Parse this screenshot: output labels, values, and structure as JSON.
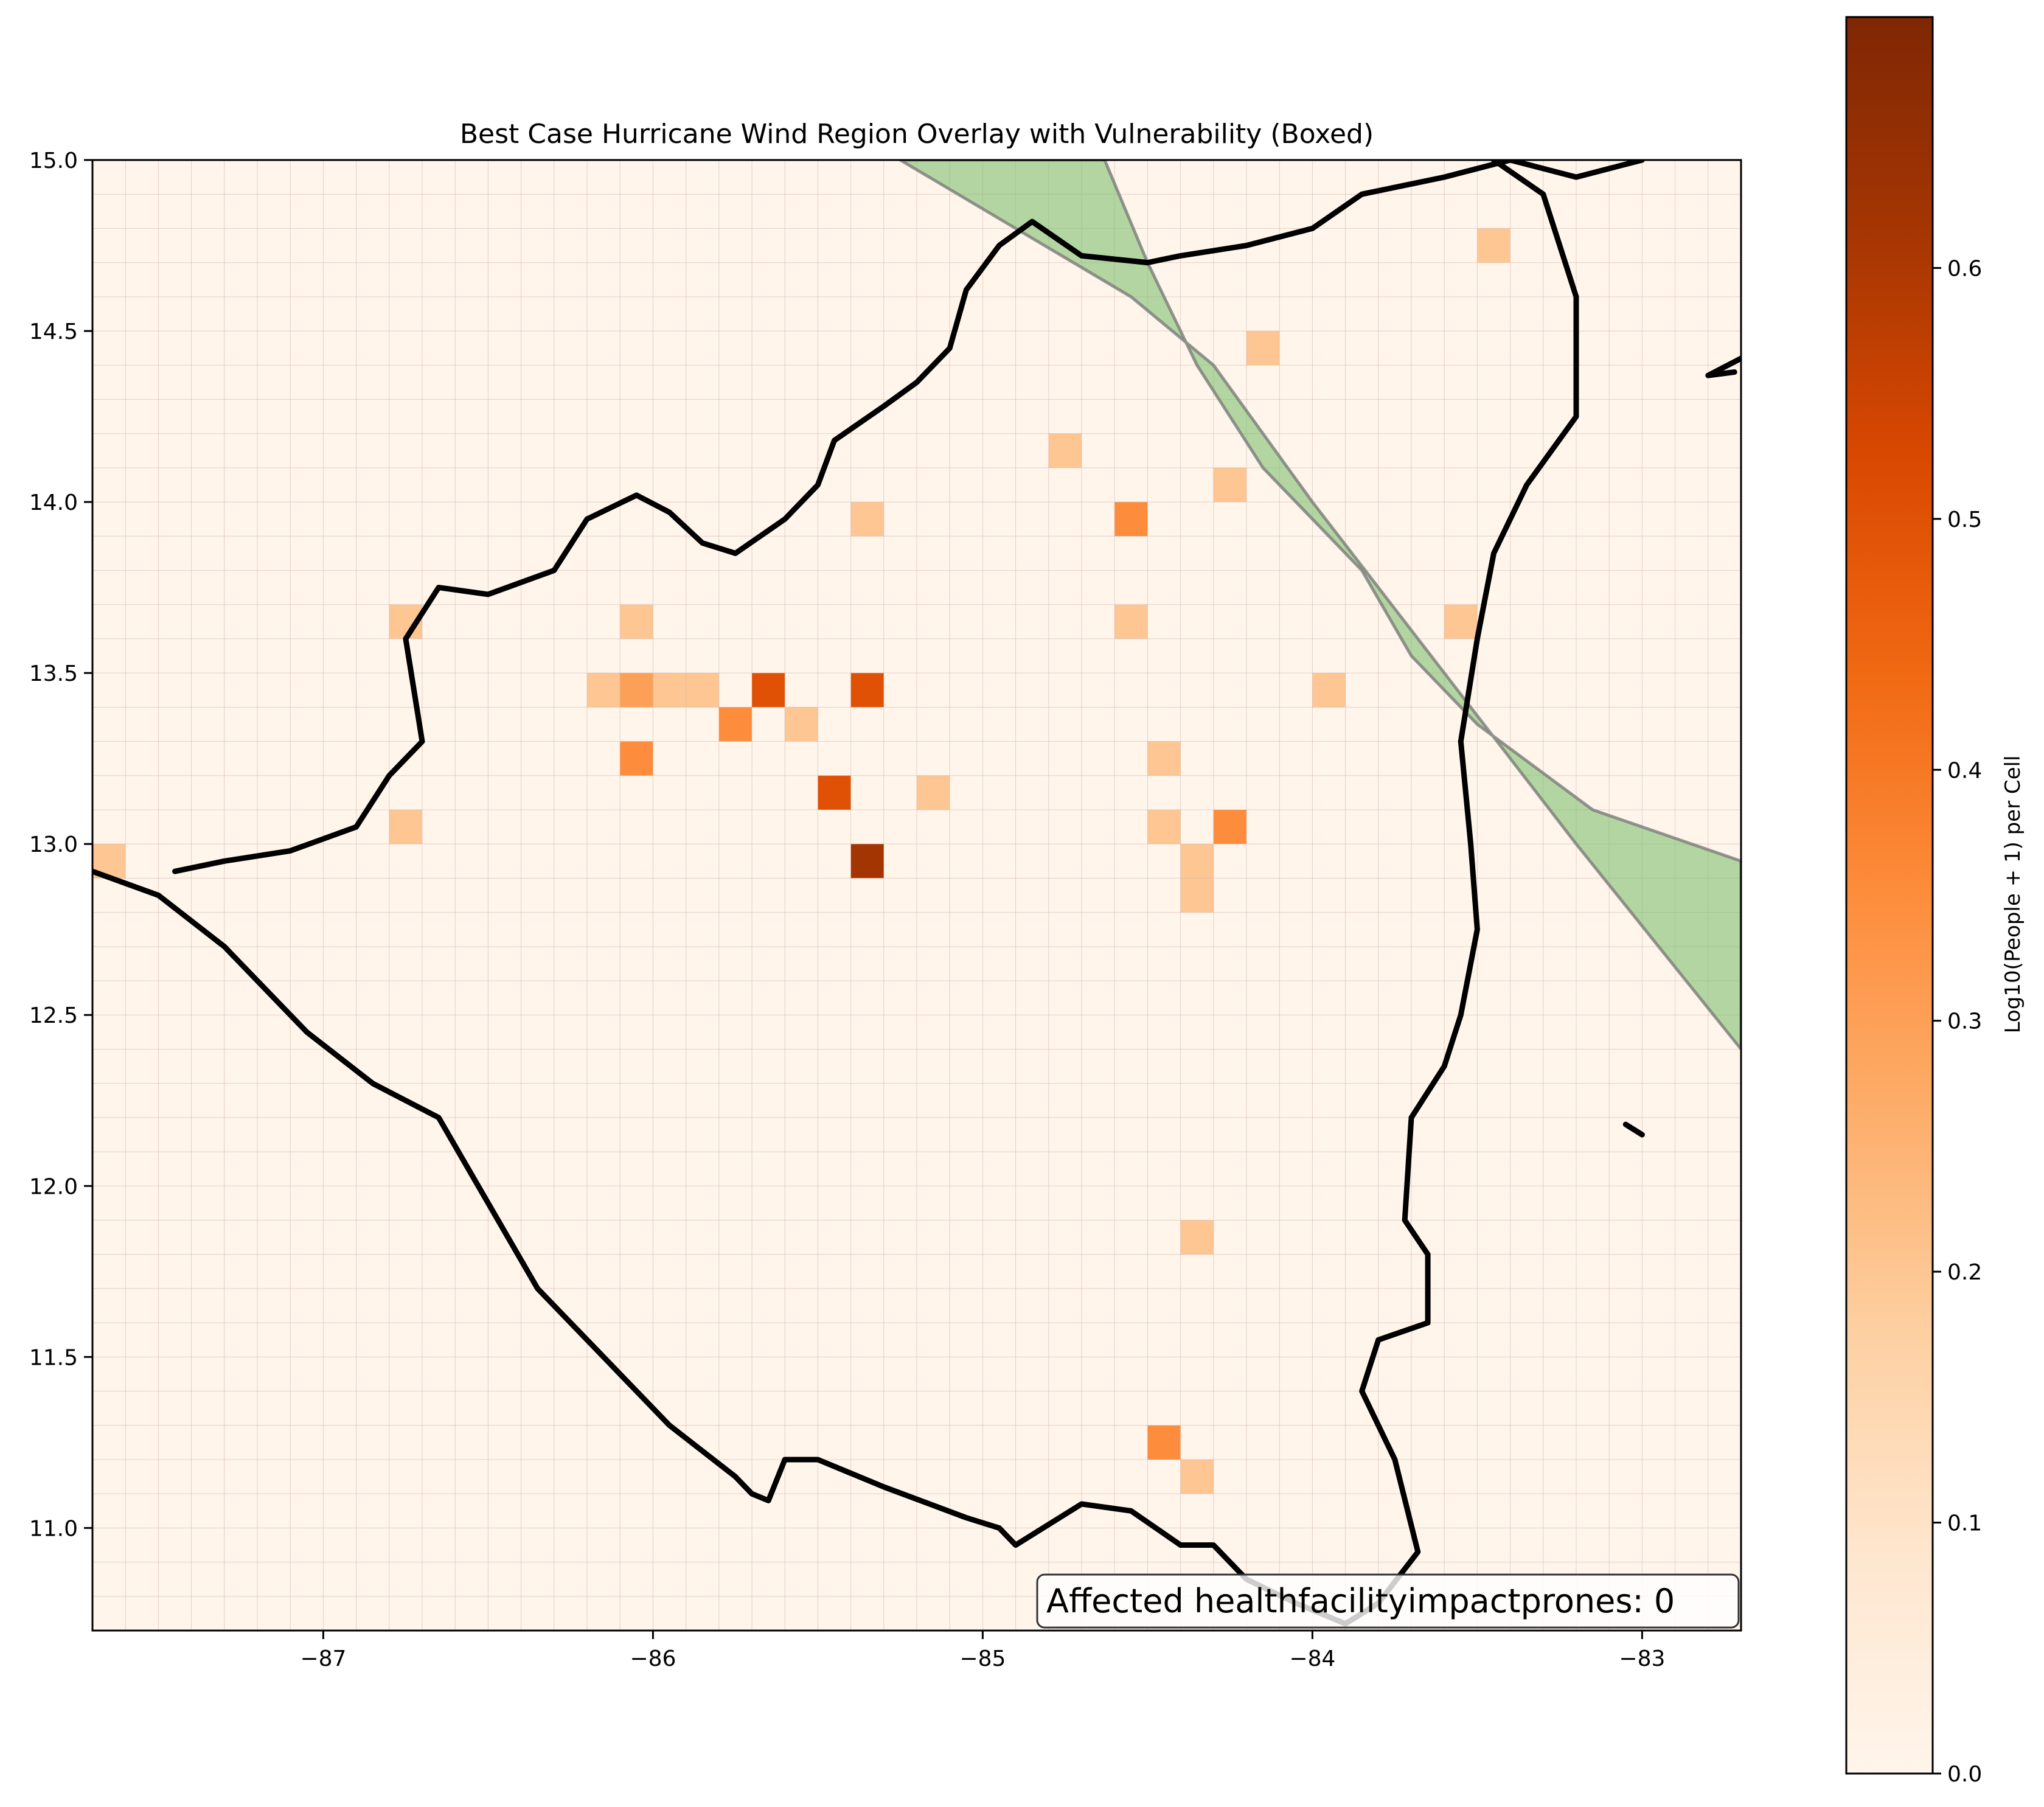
{
  "title": "Best Case Hurricane Wind Region Overlay with Vulnerability (Boxed)",
  "annotation": "Affected healthfacilityimpactprones: 0",
  "colorbar": {
    "label": "Log10(People + 1) per Cell",
    "ticks": [
      "0.0",
      "0.1",
      "0.2",
      "0.3",
      "0.4",
      "0.5",
      "0.6"
    ],
    "range": [
      0,
      0.7
    ],
    "colormap": [
      "#fff5eb",
      "#fee6ce",
      "#fdd0a2",
      "#fdae6b",
      "#fd8d3c",
      "#f16913",
      "#d94801",
      "#a63603",
      "#7f2704"
    ]
  },
  "axes": {
    "x_ticks": [
      "−87",
      "−86",
      "−85",
      "−84",
      "−83"
    ],
    "y_ticks": [
      "11.0",
      "11.5",
      "12.0",
      "12.5",
      "13.0",
      "13.5",
      "14.0",
      "14.5",
      "15.0"
    ]
  },
  "colors": {
    "background": "#fff5eb",
    "grid": "#c9a9a6",
    "wind_fill": "#7fbf6f",
    "wind_edge": "#7a7a7a",
    "coast": "#000000"
  },
  "chart_data": {
    "type": "heatmap",
    "title": "Best Case Hurricane Wind Region Overlay with Vulnerability (Boxed)",
    "xlim": [
      -87.7,
      -82.7
    ],
    "ylim": [
      10.7,
      15.0
    ],
    "cell_size_deg": 0.1,
    "value_label": "Log10(People + 1) per Cell",
    "cells": [
      {
        "lon": -83.45,
        "lat": 14.75,
        "v": 0.2
      },
      {
        "lon": -84.15,
        "lat": 14.45,
        "v": 0.2
      },
      {
        "lon": -84.75,
        "lat": 14.15,
        "v": 0.2
      },
      {
        "lon": -84.25,
        "lat": 14.05,
        "v": 0.2
      },
      {
        "lon": -85.35,
        "lat": 13.95,
        "v": 0.2
      },
      {
        "lon": -84.55,
        "lat": 13.95,
        "v": 0.35
      },
      {
        "lon": -86.75,
        "lat": 13.65,
        "v": 0.2
      },
      {
        "lon": -86.05,
        "lat": 13.65,
        "v": 0.2
      },
      {
        "lon": -84.55,
        "lat": 13.65,
        "v": 0.2
      },
      {
        "lon": -83.55,
        "lat": 13.65,
        "v": 0.2
      },
      {
        "lon": -86.15,
        "lat": 13.45,
        "v": 0.2
      },
      {
        "lon": -86.05,
        "lat": 13.45,
        "v": 0.3
      },
      {
        "lon": -85.95,
        "lat": 13.45,
        "v": 0.2
      },
      {
        "lon": -85.85,
        "lat": 13.45,
        "v": 0.2
      },
      {
        "lon": -85.65,
        "lat": 13.45,
        "v": 0.5
      },
      {
        "lon": -85.35,
        "lat": 13.45,
        "v": 0.5
      },
      {
        "lon": -83.95,
        "lat": 13.45,
        "v": 0.2
      },
      {
        "lon": -85.75,
        "lat": 13.35,
        "v": 0.35
      },
      {
        "lon": -85.55,
        "lat": 13.35,
        "v": 0.2
      },
      {
        "lon": -86.05,
        "lat": 13.25,
        "v": 0.35
      },
      {
        "lon": -84.45,
        "lat": 13.25,
        "v": 0.2
      },
      {
        "lon": -85.45,
        "lat": 13.15,
        "v": 0.5
      },
      {
        "lon": -85.15,
        "lat": 13.15,
        "v": 0.2
      },
      {
        "lon": -86.75,
        "lat": 13.05,
        "v": 0.2
      },
      {
        "lon": -84.45,
        "lat": 13.05,
        "v": 0.2
      },
      {
        "lon": -84.25,
        "lat": 13.05,
        "v": 0.35
      },
      {
        "lon": -87.65,
        "lat": 12.95,
        "v": 0.2
      },
      {
        "lon": -85.35,
        "lat": 12.95,
        "v": 0.62
      },
      {
        "lon": -84.35,
        "lat": 12.95,
        "v": 0.2
      },
      {
        "lon": -84.35,
        "lat": 12.85,
        "v": 0.2
      },
      {
        "lon": -84.35,
        "lat": 11.85,
        "v": 0.2
      },
      {
        "lon": -84.45,
        "lat": 11.25,
        "v": 0.35
      },
      {
        "lon": -84.35,
        "lat": 11.15,
        "v": 0.2
      }
    ],
    "wind_region": {
      "band_a": [
        [
          -85.25,
          15.0
        ],
        [
          -84.55,
          14.6
        ],
        [
          -84.3,
          14.4
        ],
        [
          -84.0,
          14.0
        ],
        [
          -83.6,
          13.5
        ],
        [
          -83.2,
          13.0
        ],
        [
          -82.7,
          12.4
        ],
        [
          -82.7,
          12.95
        ],
        [
          -83.15,
          13.1
        ],
        [
          -83.5,
          13.35
        ],
        [
          -83.7,
          13.55
        ],
        [
          -83.85,
          13.8
        ],
        [
          -84.15,
          14.1
        ],
        [
          -84.35,
          14.4
        ],
        [
          -84.5,
          14.7
        ],
        [
          -84.63,
          15.0
        ]
      ]
    },
    "coastline": [
      [
        [
          -87.7,
          12.92
        ],
        [
          -87.5,
          12.85
        ],
        [
          -87.3,
          12.7
        ],
        [
          -87.05,
          12.45
        ],
        [
          -86.85,
          12.3
        ],
        [
          -86.65,
          12.2
        ],
        [
          -86.5,
          11.95
        ],
        [
          -86.35,
          11.7
        ],
        [
          -86.15,
          11.5
        ],
        [
          -85.95,
          11.3
        ],
        [
          -85.75,
          11.15
        ],
        [
          -85.7,
          11.1
        ],
        [
          -85.65,
          11.08
        ],
        [
          -85.6,
          11.2
        ],
        [
          -85.5,
          11.2
        ],
        [
          -85.3,
          11.12
        ],
        [
          -85.05,
          11.03
        ],
        [
          -84.95,
          11.0
        ],
        [
          -84.9,
          10.95
        ],
        [
          -84.7,
          11.07
        ],
        [
          -84.55,
          11.05
        ],
        [
          -84.4,
          10.95
        ],
        [
          -84.3,
          10.95
        ],
        [
          -84.2,
          10.85
        ],
        [
          -84.05,
          10.78
        ],
        [
          -83.9,
          10.72
        ],
        [
          -83.8,
          10.78
        ],
        [
          -83.68,
          10.93
        ],
        [
          -83.75,
          11.2
        ],
        [
          -83.85,
          11.4
        ],
        [
          -83.8,
          11.55
        ],
        [
          -83.65,
          11.6
        ],
        [
          -83.65,
          11.8
        ],
        [
          -83.72,
          11.9
        ],
        [
          -83.7,
          12.2
        ],
        [
          -83.6,
          12.35
        ],
        [
          -83.55,
          12.5
        ],
        [
          -83.5,
          12.75
        ],
        [
          -83.52,
          13.0
        ],
        [
          -83.55,
          13.3
        ],
        [
          -83.5,
          13.6
        ],
        [
          -83.45,
          13.85
        ],
        [
          -83.35,
          14.05
        ],
        [
          -83.2,
          14.25
        ],
        [
          -83.2,
          14.6
        ],
        [
          -83.3,
          14.9
        ],
        [
          -83.45,
          15.0
        ]
      ],
      [
        [
          -83.0,
          15.0
        ],
        [
          -83.2,
          14.95
        ],
        [
          -83.4,
          15.0
        ],
        [
          -83.6,
          14.95
        ],
        [
          -83.85,
          14.9
        ],
        [
          -84.0,
          14.8
        ],
        [
          -84.2,
          14.75
        ],
        [
          -84.4,
          14.72
        ],
        [
          -84.5,
          14.7
        ],
        [
          -84.7,
          14.72
        ],
        [
          -84.85,
          14.82
        ],
        [
          -84.95,
          14.75
        ],
        [
          -85.05,
          14.62
        ],
        [
          -85.1,
          14.45
        ],
        [
          -85.2,
          14.35
        ],
        [
          -85.3,
          14.28
        ],
        [
          -85.45,
          14.18
        ],
        [
          -85.5,
          14.05
        ],
        [
          -85.6,
          13.95
        ],
        [
          -85.75,
          13.85
        ],
        [
          -85.85,
          13.88
        ],
        [
          -85.95,
          13.97
        ],
        [
          -86.05,
          14.02
        ],
        [
          -86.2,
          13.95
        ],
        [
          -86.3,
          13.8
        ],
        [
          -86.5,
          13.73
        ],
        [
          -86.65,
          13.75
        ],
        [
          -86.75,
          13.6
        ],
        [
          -86.7,
          13.3
        ],
        [
          -86.8,
          13.2
        ],
        [
          -86.9,
          13.05
        ],
        [
          -87.1,
          12.98
        ],
        [
          -87.3,
          12.95
        ],
        [
          -87.45,
          12.92
        ]
      ],
      [
        [
          -82.72,
          14.38
        ],
        [
          -82.8,
          14.37
        ],
        [
          -82.7,
          14.42
        ]
      ],
      [
        [
          -83.05,
          12.18
        ],
        [
          -83.0,
          12.15
        ]
      ]
    ]
  }
}
